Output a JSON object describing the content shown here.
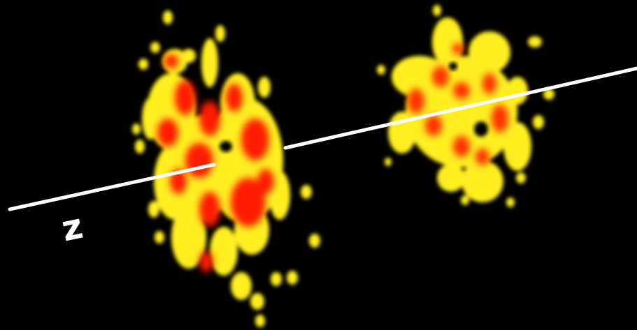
{
  "axis_label": "z"
}
